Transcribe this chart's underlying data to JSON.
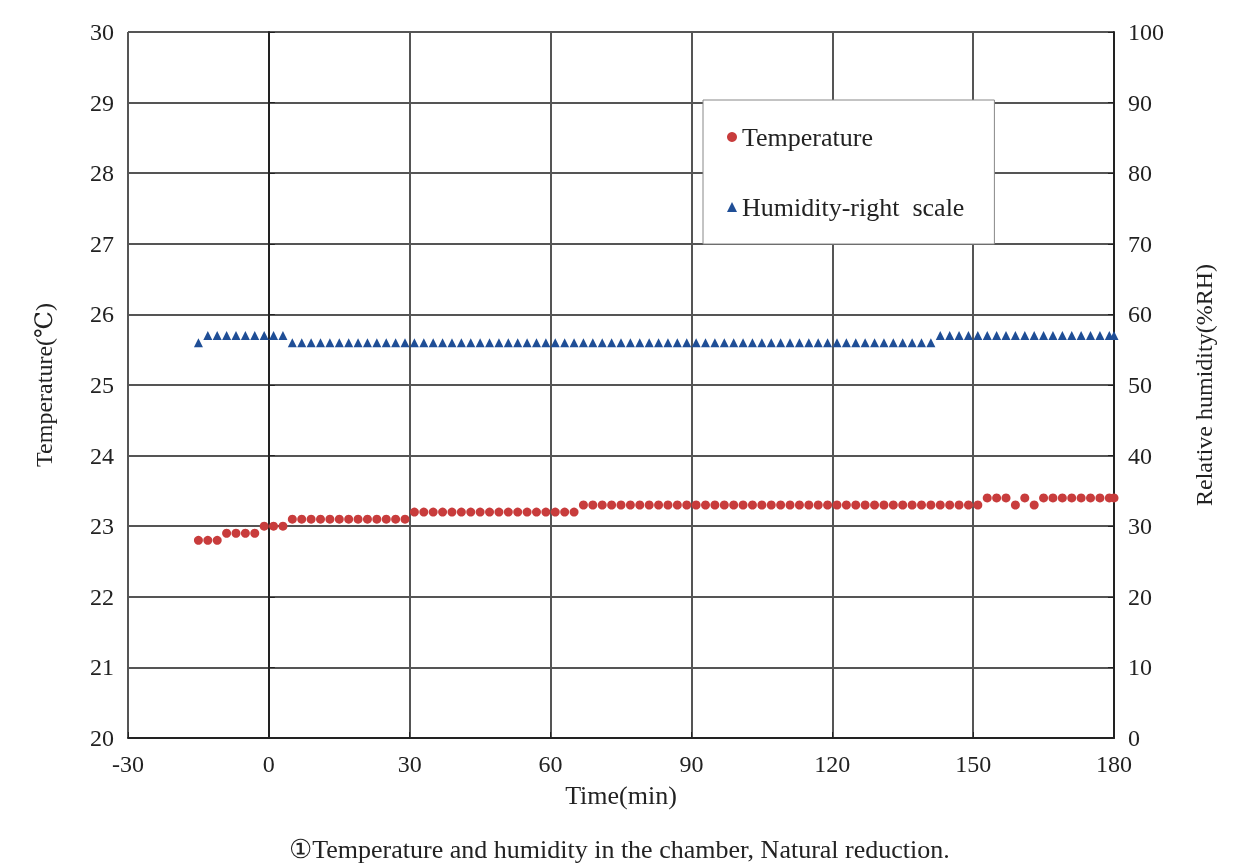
{
  "chart_data": {
    "type": "scatter",
    "xlabel": "Time(min)",
    "ylabel": "Temperature(℃)",
    "y2label": "Relative humidity(%RH)",
    "annotations": [
      "①Temperature and humidity in the chamber, Natural reduction."
    ],
    "x": [
      -15,
      -13,
      -11,
      -9,
      -7,
      -5,
      -3,
      -1,
      1,
      3,
      5,
      7,
      9,
      11,
      13,
      15,
      17,
      19,
      21,
      23,
      25,
      27,
      29,
      31,
      33,
      35,
      37,
      39,
      41,
      43,
      45,
      47,
      49,
      51,
      53,
      55,
      57,
      59,
      61,
      63,
      65,
      67,
      69,
      71,
      73,
      75,
      77,
      79,
      81,
      83,
      85,
      87,
      89,
      91,
      93,
      95,
      97,
      99,
      101,
      103,
      105,
      107,
      109,
      111,
      113,
      115,
      117,
      119,
      121,
      123,
      125,
      127,
      129,
      131,
      133,
      135,
      137,
      139,
      141,
      143,
      145,
      147,
      149,
      151,
      153,
      155,
      157,
      159,
      161,
      163,
      165,
      167,
      169,
      171,
      173,
      175,
      177,
      179,
      180
    ],
    "series": [
      {
        "name": "Temperature",
        "color": "#c83c3c",
        "marker": "circle",
        "values": [
          22.8,
          22.8,
          22.8,
          22.9,
          22.9,
          22.9,
          22.9,
          23.0,
          23.0,
          23.0,
          23.1,
          23.1,
          23.1,
          23.1,
          23.1,
          23.1,
          23.1,
          23.1,
          23.1,
          23.1,
          23.1,
          23.1,
          23.1,
          23.2,
          23.2,
          23.2,
          23.2,
          23.2,
          23.2,
          23.2,
          23.2,
          23.2,
          23.2,
          23.2,
          23.2,
          23.2,
          23.2,
          23.2,
          23.2,
          23.2,
          23.2,
          23.3,
          23.3,
          23.3,
          23.3,
          23.3,
          23.3,
          23.3,
          23.3,
          23.3,
          23.3,
          23.3,
          23.3,
          23.3,
          23.3,
          23.3,
          23.3,
          23.3,
          23.3,
          23.3,
          23.3,
          23.3,
          23.3,
          23.3,
          23.3,
          23.3,
          23.3,
          23.3,
          23.3,
          23.3,
          23.3,
          23.3,
          23.3,
          23.3,
          23.3,
          23.3,
          23.3,
          23.3,
          23.3,
          23.3,
          23.3,
          23.3,
          23.3,
          23.3,
          23.4,
          23.4,
          23.4,
          23.3,
          23.4,
          23.3,
          23.4,
          23.4,
          23.4,
          23.4,
          23.4,
          23.4,
          23.4,
          23.4,
          23.4
        ]
      },
      {
        "name": "Humidity-right  scale",
        "color": "#1f4e96",
        "marker": "triangle",
        "axis": "y2",
        "values": [
          56,
          57,
          57,
          57,
          57,
          57,
          57,
          57,
          57,
          57,
          56,
          56,
          56,
          56,
          56,
          56,
          56,
          56,
          56,
          56,
          56,
          56,
          56,
          56,
          56,
          56,
          56,
          56,
          56,
          56,
          56,
          56,
          56,
          56,
          56,
          56,
          56,
          56,
          56,
          56,
          56,
          56,
          56,
          56,
          56,
          56,
          56,
          56,
          56,
          56,
          56,
          56,
          56,
          56,
          56,
          56,
          56,
          56,
          56,
          56,
          56,
          56,
          56,
          56,
          56,
          56,
          56,
          56,
          56,
          56,
          56,
          56,
          56,
          56,
          56,
          56,
          56,
          56,
          56,
          57,
          57,
          57,
          57,
          57,
          57,
          57,
          57,
          57,
          57,
          57,
          57,
          57,
          57,
          57,
          57,
          57,
          57,
          57,
          57
        ]
      }
    ],
    "xlim": [
      -30,
      180
    ],
    "xticks": [
      -30,
      0,
      30,
      60,
      90,
      120,
      150,
      180
    ],
    "ylim": [
      20,
      30
    ],
    "yticks": [
      20,
      21,
      22,
      23,
      24,
      25,
      26,
      27,
      28,
      29,
      30
    ],
    "y2lim": [
      0,
      100
    ],
    "y2ticks": [
      0,
      10,
      20,
      30,
      40,
      50,
      60,
      70,
      80,
      90,
      100
    ],
    "grid": true,
    "legend": "top right"
  }
}
